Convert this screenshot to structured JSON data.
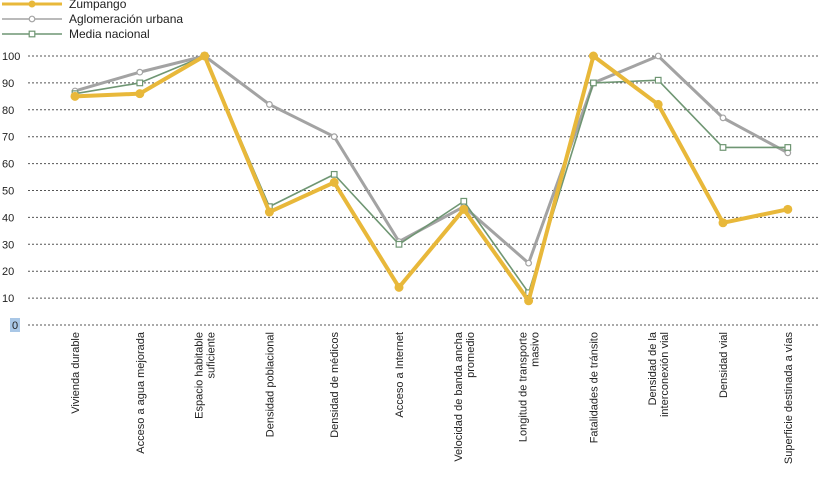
{
  "chart_data": {
    "type": "line",
    "title": "",
    "xlabel": "",
    "ylabel": "",
    "ylim": [
      0,
      100
    ],
    "yticks": [
      0,
      10,
      20,
      30,
      40,
      50,
      60,
      70,
      80,
      90,
      100
    ],
    "grid": true,
    "legend_position": "top-left",
    "categories": [
      [
        "Vivienda durable"
      ],
      [
        "Acceso a agua mejorada"
      ],
      [
        "Espacio habitable",
        "suficiente"
      ],
      [
        "Densidad poblacional"
      ],
      [
        "Densidad de médicos"
      ],
      [
        "Acceso a Internet"
      ],
      [
        "Velocidad de banda ancha",
        "promedio"
      ],
      [
        "Longitud de transporte",
        "masivo"
      ],
      [
        "Fatalidades de tránsito"
      ],
      [
        "Densidad de la",
        "interconexión vial"
      ],
      [
        "Densidad vial"
      ],
      [
        "Superficie destinada a vías"
      ]
    ],
    "series": [
      {
        "name": "Zumpango",
        "color": "#e8b83a",
        "marker": "circle-filled",
        "values": [
          85,
          86,
          100,
          42,
          53,
          14,
          43,
          9,
          100,
          82,
          38,
          43
        ]
      },
      {
        "name": "Aglomeración urbana",
        "color": "#a3a3a3",
        "marker": "circle-open",
        "values": [
          87,
          94,
          100,
          82,
          70,
          31,
          44,
          23,
          90,
          100,
          77,
          64
        ]
      },
      {
        "name": "Media nacional",
        "color": "#6f9673",
        "marker": "square-open",
        "values": [
          86,
          90,
          100,
          44,
          56,
          30,
          46,
          12,
          90,
          91,
          66,
          66
        ]
      }
    ]
  }
}
